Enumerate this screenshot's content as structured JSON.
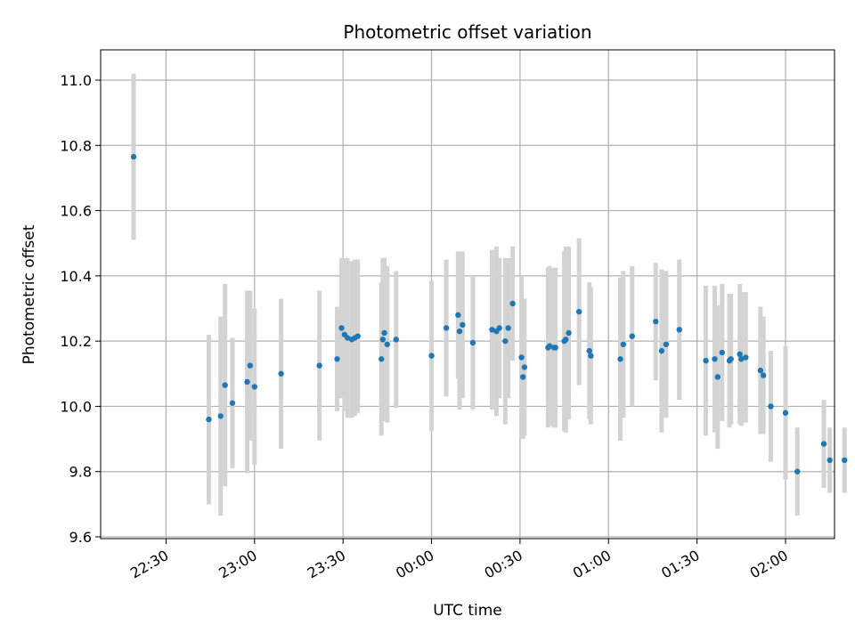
{
  "chart_data": {
    "type": "scatter",
    "title": "Photometric offset variation",
    "xlabel": "UTC time",
    "ylabel": "Photometric offset",
    "xlim": [
      -101,
      147
    ],
    "ylim": [
      9.595,
      11.095
    ],
    "grid": true,
    "x_tick_values": [
      -90,
      -60,
      -30,
      0,
      30,
      60,
      90,
      120
    ],
    "x_tick_labels": [
      "22:30",
      "23:00",
      "23:30",
      "00:00",
      "00:30",
      "01:00",
      "01:30",
      "02:00"
    ],
    "y_tick_values": [
      9.6,
      9.8,
      10.0,
      10.2,
      10.4,
      10.6,
      10.8,
      11.0
    ],
    "y_tick_labels": [
      "9.6",
      "9.8",
      "10.0",
      "10.2",
      "10.4",
      "10.6",
      "10.8",
      "11.0"
    ],
    "colors": {
      "marker": "#1f77b4",
      "errorbar": "#d3d3d3",
      "grid": "#b0b0b0",
      "axes": "#000000"
    },
    "series": [
      {
        "name": "Photometric offset",
        "x": [
          -101,
          -75.5,
          -71.5,
          -70,
          -67.5,
          -62.5,
          -61.5,
          -60,
          -51,
          -38,
          -32,
          -30.5,
          -29.5,
          -28.5,
          -27,
          -26,
          -25,
          -17,
          -16.5,
          -16,
          -15,
          -12,
          0,
          5,
          9,
          9.5,
          10.5,
          14,
          20.5,
          22,
          23,
          25,
          26,
          27.5,
          30.5,
          31,
          31.5,
          39.5,
          40,
          41.5,
          42,
          45,
          45.5,
          46.5,
          50,
          53.5,
          54,
          64,
          65,
          68,
          76,
          78,
          79.5,
          84,
          93,
          96,
          97,
          98.5,
          101,
          101.5,
          104.5,
          105,
          106.5,
          111.5,
          112.5,
          115,
          120,
          124,
          133,
          135,
          140
        ],
        "y": [
          10.765,
          9.96,
          9.97,
          10.065,
          10.01,
          10.075,
          10.125,
          10.06,
          10.1,
          10.125,
          10.145,
          10.24,
          10.22,
          10.21,
          10.205,
          10.21,
          10.215,
          10.145,
          10.205,
          10.225,
          10.19,
          10.205,
          10.155,
          10.24,
          10.28,
          10.23,
          10.25,
          10.195,
          10.235,
          10.23,
          10.24,
          10.2,
          10.24,
          10.315,
          10.15,
          10.09,
          10.12,
          10.18,
          10.185,
          10.18,
          10.18,
          10.2,
          10.205,
          10.225,
          10.29,
          10.17,
          10.155,
          10.145,
          10.19,
          10.215,
          10.26,
          10.17,
          10.19,
          10.235,
          10.14,
          10.145,
          10.09,
          10.165,
          10.14,
          10.145,
          10.16,
          10.145,
          10.15,
          10.11,
          10.095,
          10.0,
          9.98,
          9.8,
          9.885,
          9.835,
          9.835
        ],
        "yerr": [
          0.255,
          0.26,
          0.305,
          0.31,
          0.2,
          0.28,
          0.23,
          0.24,
          0.23,
          0.23,
          0.16,
          0.215,
          0.235,
          0.245,
          0.24,
          0.24,
          0.235,
          0.235,
          0.25,
          0.23,
          0.24,
          0.21,
          0.23,
          0.21,
          0.195,
          0.24,
          0.225,
          0.205,
          0.245,
          0.26,
          0.215,
          0.255,
          0.215,
          0.175,
          0.25,
          0.19,
          0.21,
          0.245,
          0.245,
          0.245,
          0.245,
          0.275,
          0.285,
          0.265,
          0.225,
          0.21,
          0.21,
          0.25,
          0.225,
          0.215,
          0.18,
          0.25,
          0.225,
          0.215,
          0.23,
          0.225,
          0.22,
          0.21,
          0.205,
          0.2,
          0.215,
          0.205,
          0.2,
          0.195,
          0.18,
          0.17,
          0.205,
          0.135,
          0.135,
          0.1,
          0.1
        ]
      }
    ]
  }
}
